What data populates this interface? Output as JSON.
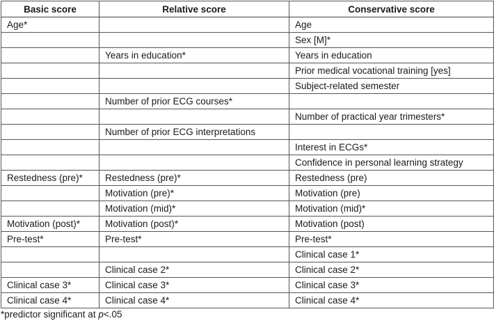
{
  "headers": [
    "Basic score",
    "Relative score",
    "Conservative score"
  ],
  "rows": [
    [
      "Age*",
      "",
      "Age"
    ],
    [
      "",
      "",
      "Sex [M]*"
    ],
    [
      "",
      "Years in education*",
      "Years in education"
    ],
    [
      "",
      "",
      "Prior medical vocational training [yes]"
    ],
    [
      "",
      "",
      "Subject-related semester"
    ],
    [
      "",
      "Number of prior ECG courses*",
      ""
    ],
    [
      "",
      "",
      "Number of practical year trimesters*"
    ],
    [
      "",
      "Number of prior ECG interpretations",
      ""
    ],
    [
      "",
      "",
      "Interest in ECGs*"
    ],
    [
      "",
      "",
      "Confidence in personal learning strategy"
    ],
    [
      "Restedness (pre)*",
      "Restedness (pre)*",
      "Restedness (pre)"
    ],
    [
      "",
      "Motivation (pre)*",
      "Motivation (pre)"
    ],
    [
      "",
      "Motivation (mid)*",
      "Motivation (mid)*"
    ],
    [
      "Motivation (post)*",
      "Motivation (post)*",
      "Motivation (post)"
    ],
    [
      "Pre-test*",
      "Pre-test*",
      "Pre-test*"
    ],
    [
      "",
      "",
      "Clinical case 1*"
    ],
    [
      "",
      "Clinical case 2*",
      "Clinical case 2*"
    ],
    [
      "Clinical case 3*",
      "Clinical case 3*",
      "Clinical case 3*"
    ],
    [
      "Clinical case 4*",
      "Clinical case 4*",
      "Clinical case 4*"
    ]
  ],
  "footnote": {
    "prefix": "*predictor significant at ",
    "italic": "p",
    "suffix": "<.05"
  }
}
